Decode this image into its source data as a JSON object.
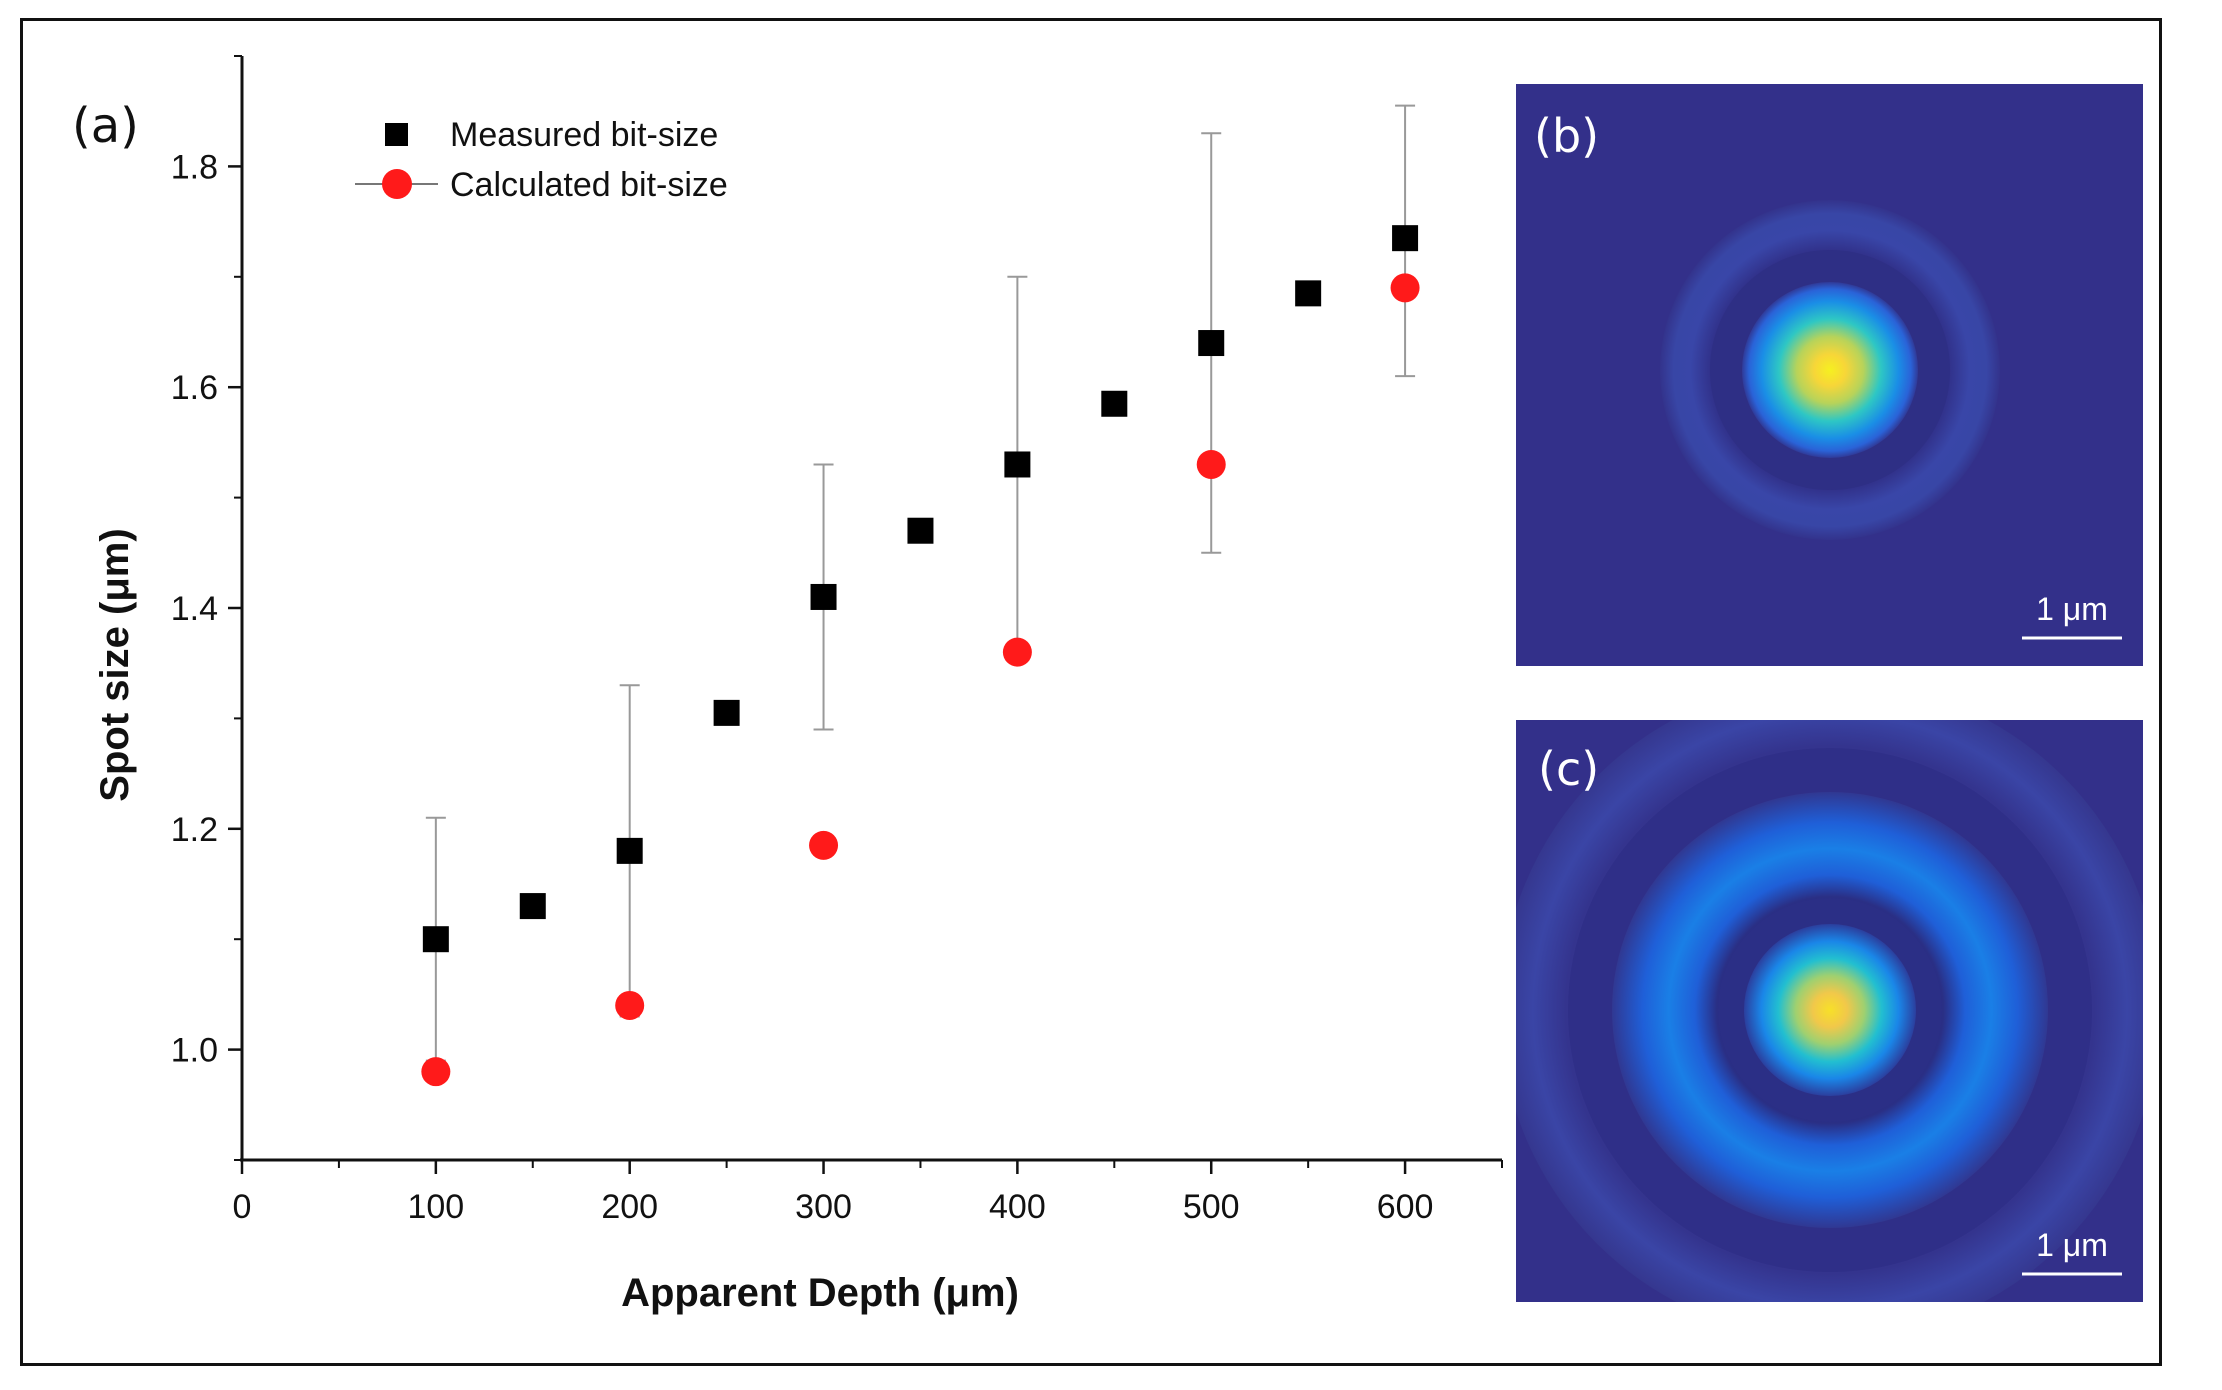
{
  "chart_data": {
    "type": "scatter",
    "panel_label": "(a)",
    "xlabel": "Apparent Depth (μm)",
    "ylabel": "Spot size (μm)",
    "xlim": [
      0,
      650
    ],
    "ylim": [
      0.9,
      1.9
    ],
    "x_ticks": [
      0,
      100,
      200,
      300,
      400,
      500,
      600
    ],
    "y_ticks": [
      1.0,
      1.2,
      1.4,
      1.6,
      1.8
    ],
    "y_tick_labels": [
      "1.0",
      "1.2",
      "1.4",
      "1.6",
      "1.8"
    ],
    "grid": false,
    "legend_position": "top-left",
    "series": [
      {
        "name": "Measured bit-size",
        "marker": "square",
        "color": "#000000",
        "x": [
          100,
          150,
          200,
          250,
          300,
          350,
          400,
          450,
          500,
          550,
          600
        ],
        "y": [
          1.1,
          1.13,
          1.18,
          1.305,
          1.41,
          1.47,
          1.53,
          1.585,
          1.64,
          1.685,
          1.735
        ]
      },
      {
        "name": "Calculated bit-size",
        "marker": "circle",
        "color": "#ff1a1a",
        "x": [
          100,
          200,
          300,
          400,
          500,
          600
        ],
        "y": [
          0.98,
          1.04,
          1.185,
          1.36,
          1.53,
          1.69
        ]
      }
    ],
    "error_bars": [
      {
        "x": 100,
        "low": 0.99,
        "high": 1.21
      },
      {
        "x": 200,
        "low": 1.03,
        "high": 1.33
      },
      {
        "x": 300,
        "low": 1.29,
        "high": 1.53
      },
      {
        "x": 400,
        "low": 1.36,
        "high": 1.7
      },
      {
        "x": 500,
        "low": 1.45,
        "high": 1.83
      },
      {
        "x": 600,
        "low": 1.61,
        "high": 1.855
      }
    ],
    "error_bar_color": "#999999"
  },
  "insets": [
    {
      "label": "(b)",
      "scale_bar": "1 μm",
      "background": "#33308a"
    },
    {
      "label": "(c)",
      "scale_bar": "1 μm",
      "background": "#33308a"
    }
  ]
}
